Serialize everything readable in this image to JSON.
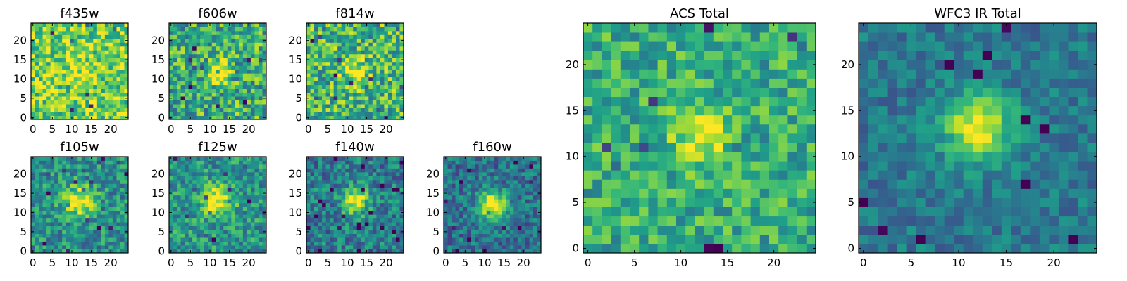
{
  "chart_data": [
    {
      "type": "heatmap",
      "title": "f435w",
      "xticks": [
        "0",
        "5",
        "10",
        "15",
        "20"
      ],
      "yticks": [
        "0",
        "5",
        "10",
        "15",
        "20"
      ],
      "xlim": [
        -0.5,
        24.5
      ],
      "ylim": [
        -0.5,
        24.5
      ],
      "grid_size": 25,
      "center": [
        12,
        12
      ],
      "blob_sigma": 2.5,
      "blob_strength": 0.15,
      "noise_amplitude": 0.55,
      "base_level": 0.78,
      "seed": 11,
      "colormap": "viridis"
    },
    {
      "type": "heatmap",
      "title": "f606w",
      "xticks": [
        "0",
        "5",
        "10",
        "15",
        "20"
      ],
      "yticks": [
        "0",
        "5",
        "10",
        "15",
        "20"
      ],
      "xlim": [
        -0.5,
        24.5
      ],
      "ylim": [
        -0.5,
        24.5
      ],
      "grid_size": 25,
      "center": [
        12,
        12
      ],
      "blob_sigma": 2.0,
      "blob_strength": 0.45,
      "noise_amplitude": 0.6,
      "base_level": 0.62,
      "seed": 23,
      "colormap": "viridis"
    },
    {
      "type": "heatmap",
      "title": "f814w",
      "xticks": [
        "0",
        "5",
        "10",
        "15",
        "20"
      ],
      "yticks": [
        "0",
        "5",
        "10",
        "15",
        "20"
      ],
      "xlim": [
        -0.5,
        24.5
      ],
      "ylim": [
        -0.5,
        24.5
      ],
      "grid_size": 25,
      "center": [
        12,
        12
      ],
      "blob_sigma": 2.2,
      "blob_strength": 0.35,
      "noise_amplitude": 0.6,
      "base_level": 0.66,
      "seed": 37,
      "colormap": "viridis"
    },
    {
      "type": "heatmap",
      "title": "f105w",
      "xticks": [
        "0",
        "5",
        "10",
        "15",
        "20"
      ],
      "yticks": [
        "0",
        "5",
        "10",
        "15",
        "20"
      ],
      "xlim": [
        -0.5,
        24.5
      ],
      "ylim": [
        -0.5,
        24.5
      ],
      "grid_size": 25,
      "center": [
        12,
        13
      ],
      "blob_sigma": 2.8,
      "blob_strength": 0.5,
      "noise_amplitude": 0.45,
      "base_level": 0.5,
      "seed": 41,
      "colormap": "viridis"
    },
    {
      "type": "heatmap",
      "title": "f125w",
      "xticks": [
        "0",
        "5",
        "10",
        "15",
        "20"
      ],
      "yticks": [
        "0",
        "5",
        "10",
        "15",
        "20"
      ],
      "xlim": [
        -0.5,
        24.5
      ],
      "ylim": [
        -0.5,
        24.5
      ],
      "grid_size": 25,
      "center": [
        12,
        13
      ],
      "blob_sigma": 2.8,
      "blob_strength": 0.5,
      "noise_amplitude": 0.45,
      "base_level": 0.52,
      "seed": 53,
      "colormap": "viridis"
    },
    {
      "type": "heatmap",
      "title": "f140w",
      "xticks": [
        "0",
        "5",
        "10",
        "15",
        "20"
      ],
      "yticks": [
        "0",
        "5",
        "10",
        "15",
        "20"
      ],
      "xlim": [
        -0.5,
        24.5
      ],
      "ylim": [
        -0.5,
        24.5
      ],
      "grid_size": 25,
      "center": [
        12,
        13
      ],
      "blob_sigma": 2.4,
      "blob_strength": 0.6,
      "noise_amplitude": 0.45,
      "base_level": 0.42,
      "seed": 67,
      "colormap": "viridis"
    },
    {
      "type": "heatmap",
      "title": "f160w",
      "xticks": [
        "0",
        "5",
        "10",
        "15",
        "20"
      ],
      "yticks": [
        "0",
        "5",
        "10",
        "15",
        "20"
      ],
      "xlim": [
        -0.5,
        24.5
      ],
      "ylim": [
        -0.5,
        24.5
      ],
      "grid_size": 25,
      "center": [
        12,
        12
      ],
      "blob_sigma": 2.6,
      "blob_strength": 0.7,
      "noise_amplitude": 0.4,
      "base_level": 0.38,
      "seed": 79,
      "colormap": "viridis"
    },
    {
      "type": "heatmap",
      "title": "ACS Total",
      "xticks": [
        "0",
        "5",
        "10",
        "15",
        "20"
      ],
      "yticks": [
        "0",
        "5",
        "10",
        "15",
        "20"
      ],
      "xlim": [
        -0.5,
        24.5
      ],
      "ylim": [
        -0.5,
        24.5
      ],
      "grid_size": 25,
      "center": [
        12,
        12
      ],
      "blob_sigma": 2.0,
      "blob_strength": 0.38,
      "noise_amplitude": 0.42,
      "base_level": 0.62,
      "seed": 97,
      "colormap": "viridis"
    },
    {
      "type": "heatmap",
      "title": "WFC3 IR Total",
      "xticks": [
        "0",
        "5",
        "10",
        "15",
        "20"
      ],
      "yticks": [
        "0",
        "5",
        "10",
        "15",
        "20"
      ],
      "xlim": [
        -0.5,
        24.5
      ],
      "ylim": [
        -0.5,
        24.5
      ],
      "grid_size": 25,
      "center": [
        12,
        13
      ],
      "blob_sigma": 2.5,
      "blob_strength": 0.62,
      "noise_amplitude": 0.28,
      "base_level": 0.4,
      "seed": 113,
      "colormap": "viridis"
    }
  ]
}
